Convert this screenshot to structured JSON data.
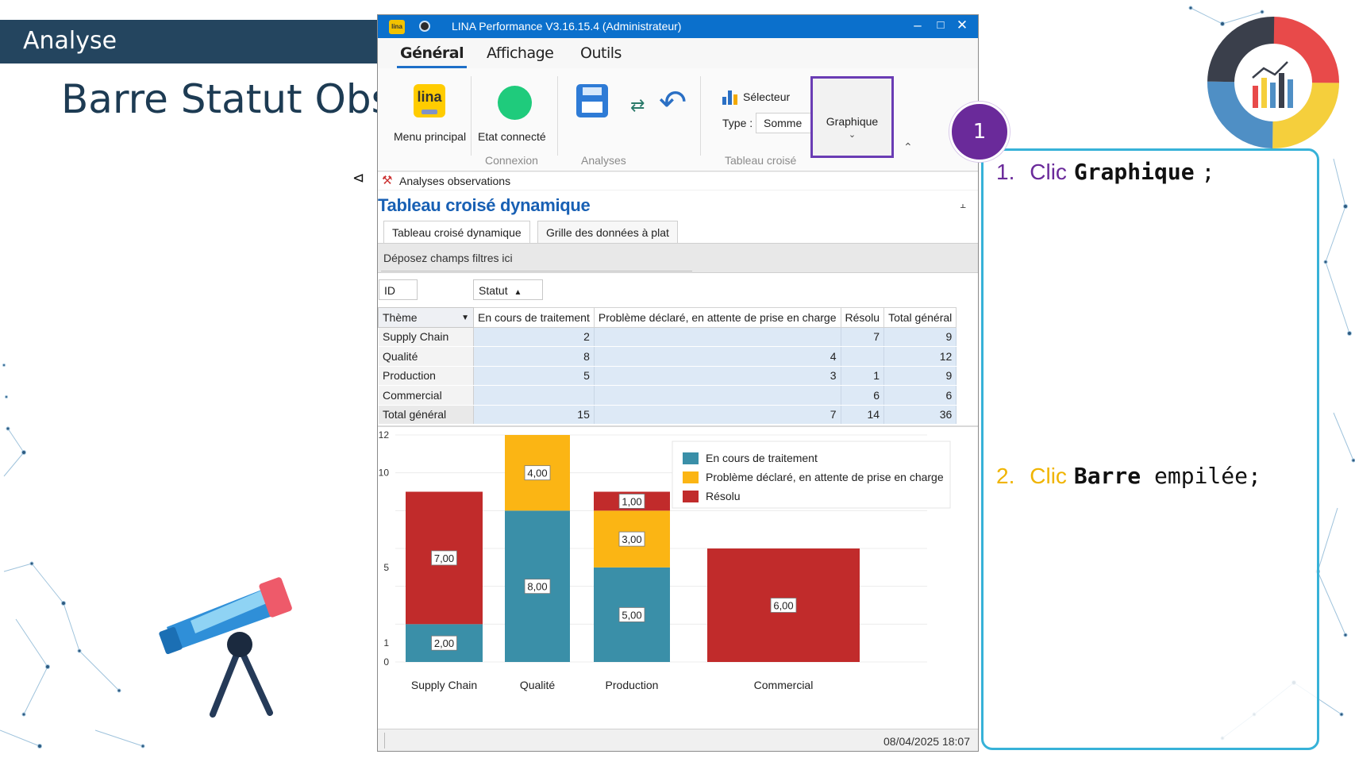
{
  "slide": {
    "section_label": "Analyse",
    "heading_bold_1": "Barre",
    "heading_regular_1": "Statut",
    "heading_bold_2": "",
    "heading_text": "Barre Statut Obs"
  },
  "app": {
    "title": "LINA Performance  V3.16.15.4  (Administrateur)",
    "ribbon_tabs": [
      "Général",
      "Affichage",
      "Outils"
    ],
    "ribbon": {
      "menu_principal": "Menu principal",
      "etat_connecte": "Etat connecté",
      "group_connexion": "Connexion",
      "group_analyses": "Analyses",
      "selecteur": "Sélecteur",
      "type_label": "Type :",
      "type_value": "Somme",
      "group_tableau": "Tableau croisé",
      "graphique": "Graphique"
    },
    "subheader": "Analyses observations",
    "content_title": "Tableau croisé dynamique",
    "content_tabs": [
      "Tableau croisé dynamique",
      "Grille des données à plat"
    ],
    "filter_zone": "Déposez champs filtres ici",
    "fields": {
      "id": "ID",
      "statut": "Statut",
      "theme": "Thème"
    },
    "pivot": {
      "columns": [
        "En cours de traitement",
        "Problème déclaré, en attente de prise en charge",
        "Résolu",
        "Total général"
      ],
      "rows": [
        {
          "label": "Supply Chain",
          "values": [
            "2",
            "",
            "7",
            "9"
          ]
        },
        {
          "label": "Qualité",
          "values": [
            "8",
            "4",
            "",
            "12"
          ]
        },
        {
          "label": "Production",
          "values": [
            "5",
            "3",
            "1",
            "9"
          ]
        },
        {
          "label": "Commercial",
          "values": [
            "",
            "",
            "6",
            "6"
          ]
        },
        {
          "label": "Total général",
          "values": [
            "15",
            "7",
            "14",
            "36"
          ]
        }
      ]
    },
    "status_datetime": "08/04/2025 18:07"
  },
  "chart_data": {
    "type": "bar",
    "stacked": true,
    "categories": [
      "Supply Chain",
      "Qualité",
      "Production",
      "Commercial"
    ],
    "series": [
      {
        "name": "En cours de traitement",
        "color": "#3a8fa8",
        "values": [
          2,
          8,
          5,
          0
        ]
      },
      {
        "name": "Problème déclaré, en attente de prise en charge",
        "color": "#fbb514",
        "values": [
          0,
          4,
          3,
          0
        ]
      },
      {
        "name": "Résolu",
        "color": "#c12b2b",
        "values": [
          7,
          0,
          1,
          6
        ]
      }
    ],
    "data_labels": {
      "En cours de traitement": [
        "2,00",
        "8,00",
        "5,00",
        ""
      ],
      "Problème déclaré, en attente de prise en charge": [
        "",
        "4,00",
        "3,00",
        ""
      ],
      "Résolu": [
        "7,00",
        "",
        "1,00",
        "6,00"
      ]
    },
    "y_ticks": [
      0,
      1,
      5,
      10,
      12
    ],
    "ylim": [
      0,
      12
    ],
    "legend_position": "top-right",
    "grid": true
  },
  "instructions": {
    "badge": "1",
    "steps": [
      {
        "num": "1.",
        "verb": "Clic",
        "target": "Graphique",
        "rest": "",
        "end": ";"
      },
      {
        "num": "2.",
        "verb": "Clic",
        "target": "Barre",
        "rest": " empilée",
        "end": ";"
      }
    ]
  },
  "colors": {
    "slide_bar": "#24455f",
    "accent_purple": "#6a2a9a",
    "accent_cyan": "#37b2d8",
    "app_titlebar": "#0b70cc"
  },
  "icons": {
    "app": "lina-app-icon",
    "titlebar_pin": "location-pin-icon",
    "telescope": "telescope-illustration",
    "logo": "donut-chart-logo"
  }
}
